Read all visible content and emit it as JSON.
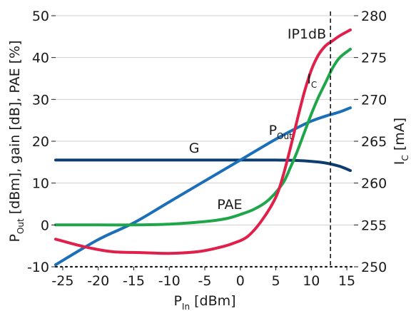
{
  "chart_data": {
    "type": "line",
    "xlabel": {
      "main": "P",
      "sub": "In",
      "tail": " [dBm]"
    },
    "ylabel_left": {
      "main": "P",
      "sub": "Out",
      "tail": " [dBm], gain [dB], PAE [%]"
    },
    "ylabel_right": {
      "main": "I",
      "sub": "C",
      "tail": " [mA]"
    },
    "xlim": [
      -26,
      16
    ],
    "ylim_left": [
      -10,
      50
    ],
    "ylim_right": [
      250,
      280
    ],
    "x_ticks": [
      -25,
      -20,
      -15,
      -10,
      -5,
      0,
      5,
      10,
      15
    ],
    "x_tick_labels": [
      "-25",
      "-20",
      "-15",
      "-10",
      "-5",
      "0",
      "5",
      "10",
      "15"
    ],
    "y_left_ticks": [
      -10,
      0,
      10,
      20,
      30,
      40,
      50
    ],
    "y_left_tick_labels": [
      "-10",
      "0",
      "10",
      "20",
      "30",
      "40",
      "50"
    ],
    "y_right_ticks": [
      250,
      255,
      260,
      265,
      270,
      275,
      280
    ],
    "y_right_tick_labels": [
      "250",
      "255",
      "260",
      "265",
      "270",
      "275",
      "280"
    ],
    "grid": "horizontal",
    "marker_line": {
      "x": 12.7,
      "label": "IP1dB"
    },
    "series": [
      {
        "name": "G",
        "axis": "left",
        "color": "#0d3c6e",
        "x": [
          -26,
          -20,
          -15,
          -10,
          -5,
          0,
          5,
          8,
          10,
          12,
          14,
          15.5
        ],
        "y": [
          15.5,
          15.5,
          15.5,
          15.5,
          15.5,
          15.5,
          15.5,
          15.4,
          15.2,
          14.8,
          14.0,
          13.0
        ]
      },
      {
        "name": "P_Out",
        "label": {
          "main": "P",
          "sub": "Out"
        },
        "axis": "left",
        "color": "#1a6fb8",
        "x": [
          -26,
          -20,
          -15,
          -10,
          -5,
          0,
          5,
          8,
          10,
          12,
          13,
          14,
          15.5
        ],
        "y": [
          -9.5,
          -3.5,
          0.5,
          5.5,
          10.5,
          15.5,
          20.5,
          23.2,
          24.8,
          26.0,
          26.5,
          27.0,
          28.0
        ]
      },
      {
        "name": "PAE",
        "axis": "left",
        "color": "#1fa64a",
        "x": [
          -26,
          -20,
          -15,
          -10,
          -5,
          -2,
          0,
          2,
          4,
          6,
          7,
          8,
          9,
          10,
          11,
          12,
          13,
          14,
          15.5
        ],
        "y": [
          0,
          0,
          0,
          0.2,
          0.8,
          1.5,
          2.5,
          3.8,
          6.0,
          10.0,
          13.5,
          17.5,
          22.0,
          26.5,
          30.5,
          34.0,
          37.5,
          40.0,
          42.0
        ]
      },
      {
        "name": "I_C",
        "label": {
          "main": "I",
          "sub": "C"
        },
        "axis": "right",
        "color": "#e0204b",
        "x": [
          -26,
          -22,
          -18,
          -14,
          -10,
          -6,
          -3,
          -1,
          1,
          3,
          5,
          6,
          7,
          8,
          9,
          10,
          11,
          12,
          13,
          14,
          15.5
        ],
        "y": [
          253.3,
          252.4,
          251.8,
          251.7,
          251.6,
          251.8,
          252.3,
          252.8,
          253.6,
          255.5,
          258.3,
          260.8,
          264.0,
          267.5,
          270.8,
          273.5,
          275.3,
          276.4,
          277.0,
          277.6,
          278.3
        ]
      }
    ]
  }
}
